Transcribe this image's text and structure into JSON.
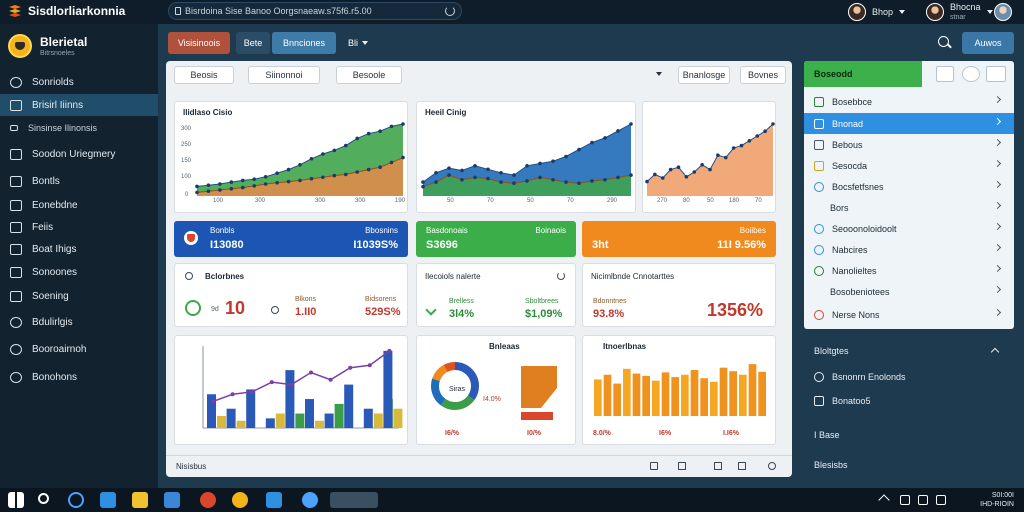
{
  "app": {
    "title": "Sisdlorliarkonnia",
    "url": "Bisrdoina Sise Banoo Oorgsnaeaw.s75f6.r5.00"
  },
  "users": [
    {
      "name": "Bhop"
    },
    {
      "name": "Bhocna",
      "sub": "stnar"
    }
  ],
  "sidebar": {
    "title": "Blerietal",
    "subtitle": "Bitrsnoeles",
    "items": [
      {
        "label": "Sonriolds",
        "icon": "dashboard-icon"
      },
      {
        "label": "Brisirl Iiinns",
        "icon": "folder-icon",
        "active": true
      },
      {
        "label": "Sinsinse Ilinonsis",
        "icon": "sub-item-icon",
        "sub": true
      },
      {
        "label": "Soodon Uriegmery",
        "icon": "layers-icon"
      },
      {
        "label": "Bontls",
        "icon": "document-icon"
      },
      {
        "label": "Eonebdne",
        "icon": "inbox-icon"
      },
      {
        "label": "Feiis",
        "icon": "tray-icon"
      },
      {
        "label": "Boat Ihigs",
        "icon": "clipboard-icon"
      },
      {
        "label": "Sonoones",
        "icon": "list-icon"
      },
      {
        "label": "Soening",
        "icon": "calendar-icon"
      },
      {
        "label": "Bdulirlgis",
        "icon": "clock-icon"
      },
      {
        "label": "Booroairnoh",
        "icon": "settings-icon"
      },
      {
        "label": "Bonohons",
        "icon": "cloud-icon"
      }
    ]
  },
  "header": {
    "tabs": [
      "Visisinoois",
      "Bete",
      "Bnnciones",
      "Bli"
    ],
    "right_button": "Auwos"
  },
  "filters": {
    "left": [
      "Beosis",
      "Siinonnoi",
      "Besoole"
    ],
    "right": [
      "Bnanlosge",
      "Bovnes"
    ]
  },
  "charts": [
    {
      "title": "Ilidlaso Cisio",
      "type": "area",
      "color": "#3fa54a",
      "yticks": [
        "300",
        "250",
        "150",
        "100",
        "0"
      ],
      "xticks": [
        "100",
        "300",
        "300",
        "300",
        "190"
      ]
    },
    {
      "title": "Heeil Cinig",
      "type": "area",
      "color": "#1f6cb8",
      "xticks": [
        "50",
        "70",
        "50",
        "70",
        "290"
      ]
    },
    {
      "title": "",
      "type": "area",
      "color": "#f0a06c",
      "xticks": [
        "270",
        "80",
        "50",
        "180",
        "70"
      ]
    }
  ],
  "stats": [
    {
      "label": "Bonbls",
      "value": "I13080",
      "right_label": "Bbosnins",
      "right_value": "I1039S%",
      "color": "#1c55b3",
      "icon": "shield-icon"
    },
    {
      "label": "Basdonoais",
      "value": "S3696",
      "right_label": "Boinaois",
      "right_value": "",
      "color": "#3cae49"
    },
    {
      "label": "",
      "value": "3ht",
      "right_label": "Boiibes",
      "right_value": "11I 9.56%",
      "color": "#f08a1e"
    }
  ],
  "kpi": [
    {
      "title": "Bclorbnes",
      "value": "10",
      "value_prefix": "9d",
      "a_label": "Blkons",
      "a_value": "1.II0",
      "b_label": "Bidsorens",
      "b_value": "529S%"
    },
    {
      "title": "Ilecoiols nalerte",
      "a_label": "Brelless",
      "a_value": "3l4%",
      "b_label": "Sboltbrees",
      "b_value": "$1,09%"
    },
    {
      "title": "Nicimlbnde Cnnotarttes",
      "a_label": "Bdonntnes",
      "a_value": "93.8%",
      "b_value": "1356%"
    }
  ],
  "chart_data": [
    {
      "type": "area",
      "title": "Ilidlaso Cisio",
      "ylim": [
        0,
        300
      ],
      "series": [
        {
          "values": [
            40,
            45,
            50,
            58,
            65,
            70,
            80,
            95,
            110,
            130,
            155,
            175,
            190,
            210,
            240,
            260,
            270,
            290,
            310
          ]
        },
        {
          "values": [
            15,
            20,
            25,
            30,
            35,
            42,
            50,
            55,
            60,
            65,
            72,
            78,
            85,
            90,
            100,
            110,
            120,
            140,
            160
          ]
        }
      ]
    },
    {
      "type": "area",
      "title": "Heeil Cinig",
      "series": [
        {
          "values": [
            60,
            100,
            120,
            110,
            130,
            115,
            100,
            90,
            130,
            140,
            150,
            170,
            200,
            230,
            250,
            280,
            310
          ]
        },
        {
          "values": [
            40,
            60,
            90,
            70,
            80,
            75,
            60,
            55,
            65,
            80,
            70,
            60,
            55,
            65,
            70,
            80,
            90
          ]
        }
      ]
    },
    {
      "type": "area",
      "series": [
        {
          "values": [
            60,
            90,
            75,
            110,
            120,
            80,
            100,
            130,
            110,
            170,
            160,
            200,
            210,
            230,
            250,
            270,
            300
          ]
        }
      ]
    },
    {
      "type": "bar",
      "series": [
        {
          "name": "blue",
          "values": [
            70,
            40,
            80,
            20,
            120,
            60,
            30,
            90,
            40,
            160
          ]
        },
        {
          "name": "yellow",
          "values": [
            25,
            15,
            0,
            30,
            0,
            15,
            0,
            0,
            30,
            40
          ]
        },
        {
          "name": "green",
          "values": [
            0,
            0,
            0,
            0,
            30,
            0,
            50,
            0,
            60,
            0
          ]
        }
      ],
      "line": [
        55,
        70,
        75,
        95,
        90,
        115,
        100,
        125,
        130,
        160
      ]
    },
    {
      "type": "pie",
      "title": "Bnleaas",
      "slices": [
        35,
        25,
        20,
        12,
        8
      ],
      "labels": [
        "Siras",
        "I4.0%"
      ],
      "foot": [
        "I6/%",
        "I0/%"
      ]
    },
    {
      "type": "bar",
      "title": "Itnoerlbnas",
      "values": [
        62,
        70,
        55,
        80,
        72,
        68,
        60,
        74,
        66,
        70,
        78,
        64,
        58,
        82,
        76,
        70,
        88,
        75
      ],
      "foot": [
        "8.0/%",
        "I6%",
        "I.I6%"
      ]
    }
  ],
  "footer": {
    "left": "Nisisbus"
  },
  "rpanel": {
    "head": "Boseodd",
    "items": [
      {
        "label": "Bosebbce",
        "icon": "check-box-icon"
      },
      {
        "label": "Bnonad",
        "icon": "list-box-icon",
        "active": true
      },
      {
        "label": "Bebous",
        "icon": "note-icon"
      },
      {
        "label": "Sesocda",
        "icon": "badge-icon"
      },
      {
        "label": "Bocsfetfsnes",
        "icon": "refresh-icon"
      },
      {
        "label": "Bors",
        "icon": "none"
      },
      {
        "label": "Seooonoloidoolt",
        "icon": "heart-icon"
      },
      {
        "label": "Nabcires",
        "icon": "heart-icon"
      },
      {
        "label": "Nanolieltes",
        "icon": "refresh-icon"
      },
      {
        "label": "Bosobeniotees",
        "icon": "none"
      },
      {
        "label": "Nerse Nons",
        "icon": "cross-icon"
      }
    ],
    "lower_head": "Bloltgtes",
    "lower_items": [
      {
        "label": "Bsnonrn Enolonds",
        "icon": "circle-icon"
      },
      {
        "label": "Bonatoo5",
        "icon": "square-icon"
      },
      {
        "label": "I Base",
        "icon": "none"
      },
      {
        "label": "Blesisbs",
        "icon": "none"
      }
    ]
  },
  "taskbar": {
    "tray_time": "S0I:00I",
    "tray_date": "IHD-RIOIN"
  }
}
